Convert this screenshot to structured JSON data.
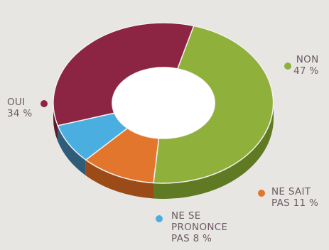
{
  "chart_data": {
    "type": "pie",
    "style": "3d-donut",
    "slices": [
      {
        "label_lines": [
          "NON",
          "47 %"
        ],
        "value": 47,
        "color": "#8fb03a",
        "side_color": "#5f7a22"
      },
      {
        "label_lines": [
          "NE SAIT",
          "PAS 11 %"
        ],
        "value": 11,
        "color": "#e2762c",
        "side_color": "#9a4b17"
      },
      {
        "label_lines": [
          "NE SE",
          "PRONONCE",
          "PAS 8 %"
        ],
        "value": 8,
        "color": "#4aaee0",
        "side_color": "#2f5c78"
      },
      {
        "label_lines": [
          "OUI",
          "34 %"
        ],
        "value": 34,
        "color": "#8c2444",
        "side_color": "#5a1a2c"
      }
    ]
  }
}
